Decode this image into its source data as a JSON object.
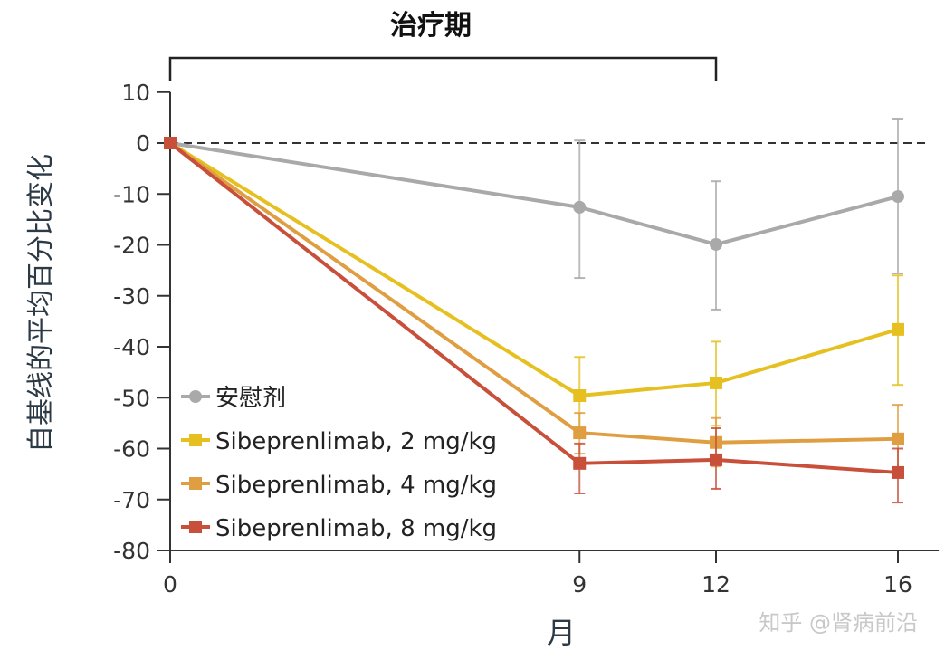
{
  "chart_data": {
    "type": "line",
    "period_label": "治疗期",
    "period_range": [
      0,
      12
    ],
    "xlabel": "月",
    "ylabel": "自基线的平均百分比变化",
    "x": [
      0,
      9,
      12,
      16
    ],
    "x_ticks": [
      "0",
      "9",
      "12",
      "16"
    ],
    "xlim": [
      0,
      16.5
    ],
    "ylim": [
      -80,
      10
    ],
    "y_ticks": [
      "10",
      "0",
      "-10",
      "-20",
      "-30",
      "-40",
      "-50",
      "-60",
      "-70",
      "-80"
    ],
    "y_tick_values": [
      10,
      0,
      -10,
      -20,
      -30,
      -40,
      -50,
      -60,
      -70,
      -80
    ],
    "reference_line": 0,
    "grid": false,
    "legend_position": "bottom-left",
    "series": [
      {
        "name": "安慰剂",
        "color": "#a9a9a9",
        "marker": "circle",
        "values": [
          0,
          -12.6,
          -19.9,
          -10.5
        ],
        "error_upper": [
          0,
          0.5,
          -7.5,
          4.8
        ],
        "error_lower": [
          0,
          -26.5,
          -32.7,
          -25.6
        ]
      },
      {
        "name": "Sibeprenlimab, 2 mg/kg",
        "color": "#e6c020",
        "marker": "square",
        "values": [
          0,
          -49.6,
          -47.1,
          -36.6
        ],
        "error_upper": [
          0,
          -42,
          -39,
          -26
        ],
        "error_lower": [
          0,
          -57,
          -55.5,
          -47.5
        ]
      },
      {
        "name": "Sibeprenlimab, 4 mg/kg",
        "color": "#e09e42",
        "marker": "square",
        "values": [
          0,
          -56.9,
          -58.8,
          -58.1
        ],
        "error_upper": [
          0,
          -53,
          -54,
          -51.4
        ],
        "error_lower": [
          0,
          -61,
          -63.5,
          -64.7
        ]
      },
      {
        "name": "Sibeprenlimab, 8 mg/kg",
        "color": "#c8503a",
        "marker": "square",
        "values": [
          0,
          -62.9,
          -62.2,
          -64.7
        ],
        "error_upper": [
          0,
          -59,
          -56,
          -60
        ],
        "error_lower": [
          0,
          -68.8,
          -67.9,
          -70.6
        ]
      }
    ]
  },
  "watermark": "知乎 @肾病前沿"
}
